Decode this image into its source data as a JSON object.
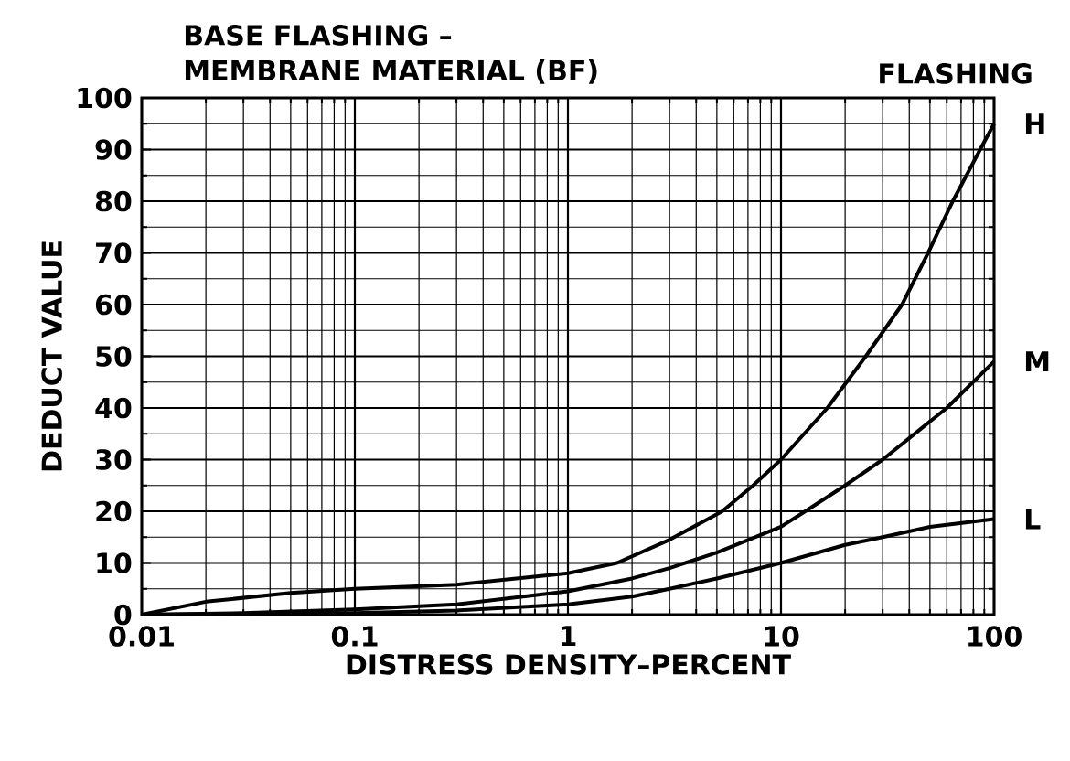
{
  "chart_data": {
    "type": "line",
    "title": "BASE FLASHING –",
    "subtitle": "MEMBRANE MATERIAL (BF)",
    "annotations": [
      "FLASHING"
    ],
    "xlabel": "DISTRESS DENSITY–PERCENT",
    "ylabel": "DEDUCT VALUE",
    "log": "x",
    "grid": true,
    "marker": "none",
    "line_style": "solid",
    "legend": "right",
    "xlim": [
      0.01,
      100
    ],
    "xticks": [
      0.01,
      0.1,
      1,
      10,
      100
    ],
    "ylim": [
      0,
      100
    ],
    "yticks": [
      0,
      10,
      20,
      30,
      40,
      50,
      60,
      70,
      80,
      90,
      100
    ],
    "series": [
      {
        "name": "H",
        "color": "#000000",
        "x": [
          0.01,
          0.02,
          0.05,
          0.1,
          0.3,
          1,
          1.7,
          3,
          5.3,
          7.4,
          10,
          16.5,
          25,
          37,
          49,
          64,
          86,
          100
        ],
        "values": [
          0,
          2.5,
          4.2,
          5,
          5.8,
          8,
          10,
          14.5,
          20,
          25,
          30,
          40,
          50,
          60,
          70,
          80,
          90,
          95
        ]
      },
      {
        "name": "M",
        "color": "#000000",
        "x": [
          0.01,
          0.03,
          0.1,
          0.3,
          1,
          2,
          3,
          5,
          10,
          13,
          20,
          30,
          60,
          100
        ],
        "values": [
          0,
          0.3,
          1,
          2,
          4.5,
          7,
          9,
          12,
          17,
          20,
          25,
          30,
          40,
          49
        ]
      },
      {
        "name": "L",
        "color": "#000000",
        "x": [
          0.01,
          0.1,
          0.3,
          1,
          2,
          3,
          5,
          10,
          20,
          30,
          50,
          100
        ],
        "values": [
          0,
          0.3,
          0.8,
          2,
          3.5,
          5,
          7,
          10,
          13.5,
          15,
          17,
          18.5
        ]
      }
    ]
  }
}
